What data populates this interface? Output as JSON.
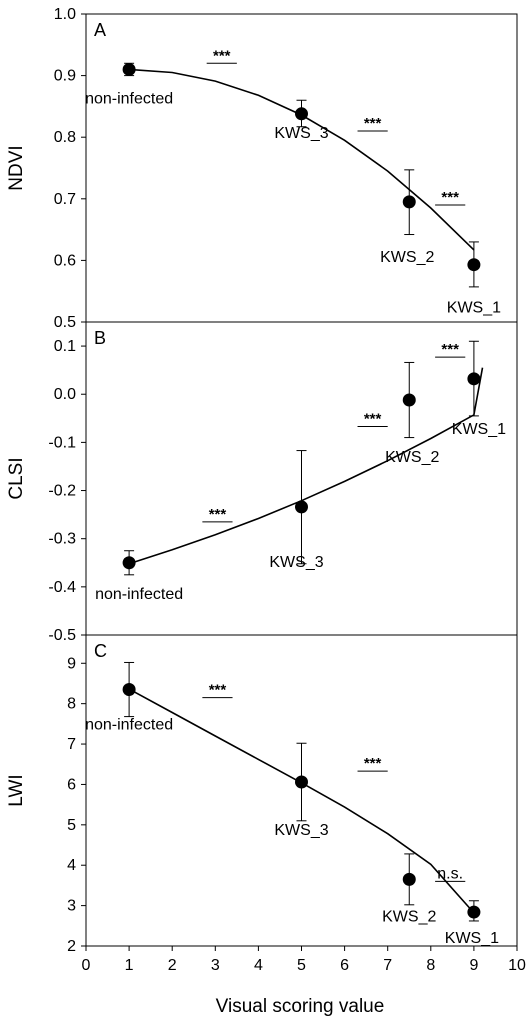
{
  "xlabel": "Visual scoring value",
  "xlim": [
    0,
    10
  ],
  "xticks": [
    0,
    1,
    2,
    3,
    4,
    5,
    6,
    7,
    8,
    9,
    10
  ],
  "chart_data": [
    {
      "type": "scatter",
      "panel": "A",
      "ylabel": "NDVI",
      "ylim": [
        0.5,
        1.0
      ],
      "yticks": [
        "0.5",
        "0.6",
        "0.7",
        "0.8",
        "0.9",
        "1.0"
      ],
      "points": [
        {
          "label": "non-infected",
          "x": 1,
          "y": 0.91,
          "err_low": 0.9,
          "err_high": 0.92
        },
        {
          "label": "KWS_3",
          "x": 5,
          "y": 0.838,
          "err_low": 0.817,
          "err_high": 0.86
        },
        {
          "label": "KWS_2",
          "x": 7.5,
          "y": 0.695,
          "err_low": 0.642,
          "err_high": 0.747
        },
        {
          "label": "KWS_1",
          "x": 9,
          "y": 0.593,
          "err_low": 0.557,
          "err_high": 0.63
        }
      ],
      "fit_curve": [
        [
          1,
          0.91
        ],
        [
          2,
          0.905
        ],
        [
          3,
          0.891
        ],
        [
          4,
          0.868
        ],
        [
          5,
          0.836
        ],
        [
          6,
          0.795
        ],
        [
          7,
          0.745
        ],
        [
          8,
          0.685
        ],
        [
          9,
          0.617
        ]
      ],
      "significance": [
        {
          "text": "***",
          "x_from": 2.8,
          "x_to": 3.5,
          "y": 0.92
        },
        {
          "text": "***",
          "x_from": 6.3,
          "x_to": 7.0,
          "y": 0.81
        },
        {
          "text": "***",
          "x_from": 8.1,
          "x_to": 8.8,
          "y": 0.69
        }
      ]
    },
    {
      "type": "scatter",
      "panel": "B",
      "ylabel": "CLSI",
      "ylim": [
        -0.5,
        0.15
      ],
      "yticks": [
        "-0.5",
        "-0.4",
        "-0.3",
        "-0.2",
        "-0.1",
        "0.0",
        "0.1"
      ],
      "points": [
        {
          "label": "non-infected",
          "x": 1,
          "y": -0.35,
          "err_low": -0.375,
          "err_high": -0.325
        },
        {
          "label": "KWS_3",
          "x": 5,
          "y": -0.234,
          "err_low": -0.352,
          "err_high": -0.117
        },
        {
          "label": "KWS_2",
          "x": 7.5,
          "y": -0.012,
          "err_low": -0.09,
          "err_high": 0.066
        },
        {
          "label": "KWS_1",
          "x": 9,
          "y": 0.032,
          "err_low": -0.045,
          "err_high": 0.11
        }
      ],
      "fit_curve": [
        [
          1,
          -0.352
        ],
        [
          2,
          -0.323
        ],
        [
          3,
          -0.292
        ],
        [
          4,
          -0.258
        ],
        [
          5,
          -0.221
        ],
        [
          6,
          -0.181
        ],
        [
          7,
          -0.138
        ],
        [
          8,
          -0.092
        ],
        [
          9,
          -0.043
        ],
        [
          9.2,
          0.055
        ]
      ],
      "significance": [
        {
          "text": "***",
          "x_from": 2.7,
          "x_to": 3.4,
          "y": -0.265
        },
        {
          "text": "***",
          "x_from": 6.3,
          "x_to": 7.0,
          "y": -0.067
        },
        {
          "text": "***",
          "x_from": 8.1,
          "x_to": 8.8,
          "y": 0.077
        }
      ]
    },
    {
      "type": "scatter",
      "panel": "C",
      "ylabel": "LWI",
      "ylim": [
        2,
        9.7
      ],
      "yticks": [
        "2",
        "3",
        "4",
        "5",
        "6",
        "7",
        "8",
        "9"
      ],
      "points": [
        {
          "label": "non-infected",
          "x": 1,
          "y": 8.35,
          "err_low": 7.68,
          "err_high": 9.02
        },
        {
          "label": "KWS_3",
          "x": 5,
          "y": 6.06,
          "err_low": 5.1,
          "err_high": 7.02
        },
        {
          "label": "KWS_2",
          "x": 7.5,
          "y": 3.65,
          "err_low": 3.02,
          "err_high": 4.28
        },
        {
          "label": "KWS_1",
          "x": 9,
          "y": 2.84,
          "err_low": 2.62,
          "err_high": 3.12
        }
      ],
      "fit_curve": [
        [
          1,
          8.36
        ],
        [
          2,
          7.78
        ],
        [
          3,
          7.2
        ],
        [
          4,
          6.62
        ],
        [
          5,
          6.04
        ],
        [
          6,
          5.44
        ],
        [
          7,
          4.78
        ],
        [
          8,
          4.02
        ],
        [
          9,
          2.82
        ]
      ],
      "significance": [
        {
          "text": "***",
          "x_from": 2.7,
          "x_to": 3.4,
          "y": 8.15
        },
        {
          "text": "***",
          "x_from": 6.3,
          "x_to": 7.0,
          "y": 6.33
        },
        {
          "text": "n.s.",
          "x_from": 8.1,
          "x_to": 8.8,
          "y": 3.6
        }
      ]
    }
  ]
}
